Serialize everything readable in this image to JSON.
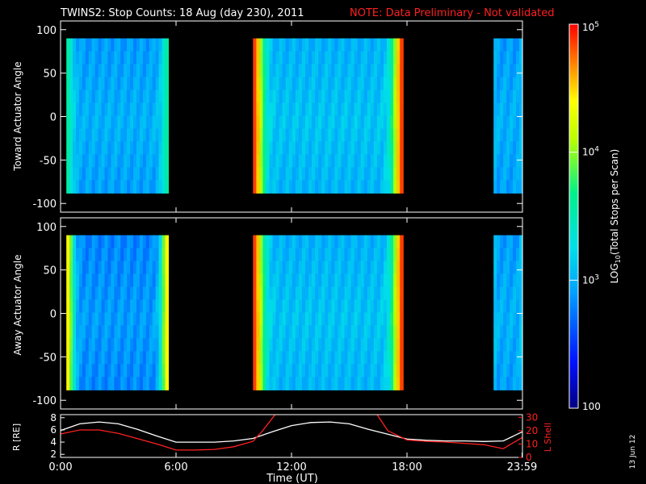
{
  "title": {
    "main": "TWINS2: Stop Counts: 18 Aug (day 230), 2011",
    "note": "NOTE: Data Preliminary - Not validated",
    "note_color": "#ff2020"
  },
  "datestamp": "13 Jun 12",
  "chart_data": [
    {
      "type": "heatmap",
      "panel": "toward",
      "ylabel": "Toward Actuator Angle",
      "ylim": [
        -110,
        110
      ],
      "yticks": [
        "100",
        "50",
        "0",
        "-50",
        "-100"
      ],
      "ytick_values": [
        100,
        50,
        0,
        -50,
        -100
      ],
      "angle_range": [
        -88,
        90
      ],
      "x_hours_range": [
        0,
        24
      ],
      "data_intervals_hours": [
        [
          0.3,
          5.6
        ],
        [
          10.0,
          17.8
        ],
        [
          22.5,
          24.0
        ]
      ],
      "log10_counts_by_interval": [
        {
          "start": 0.3,
          "end": 5.6,
          "typical": 3.0,
          "edge_max": 3.6
        },
        {
          "start": 10.0,
          "end": 17.8,
          "typical": 3.1,
          "edge_max": 4.9
        },
        {
          "start": 22.5,
          "end": 24.0,
          "typical": 3.0,
          "edge_max": 3.1
        }
      ]
    },
    {
      "type": "heatmap",
      "panel": "away",
      "ylabel": "Away Actuator Angle",
      "ylim": [
        -110,
        110
      ],
      "yticks": [
        "100",
        "50",
        "0",
        "-50",
        "-100"
      ],
      "ytick_values": [
        100,
        50,
        0,
        -50,
        -100
      ],
      "angle_range": [
        -88,
        90
      ],
      "x_hours_range": [
        0,
        24
      ],
      "data_intervals_hours": [
        [
          0.3,
          5.6
        ],
        [
          10.0,
          17.8
        ],
        [
          22.5,
          24.0
        ]
      ],
      "log10_counts_by_interval": [
        {
          "start": 0.3,
          "end": 5.6,
          "typical": 2.9,
          "edge_max": 4.5
        },
        {
          "start": 10.0,
          "end": 17.8,
          "typical": 3.1,
          "edge_max": 4.9
        },
        {
          "start": 22.5,
          "end": 24.0,
          "typical": 3.0,
          "edge_max": 3.2
        }
      ]
    },
    {
      "type": "line",
      "panel": "ephemeris",
      "ylabel": "R [RE]",
      "ylabel_right": "L Shell",
      "xlabel": "Time (UT)",
      "xticks": [
        "0:00",
        "6:00",
        "12:00",
        "18:00",
        "23:59"
      ],
      "xtick_hours": [
        0,
        6,
        12,
        18,
        23.98
      ],
      "yticks_left": [
        "2",
        "4",
        "6",
        "8"
      ],
      "ytick_values_left": [
        2,
        4,
        6,
        8
      ],
      "ylim_left": [
        1.5,
        8.5
      ],
      "yticks_right": [
        "0",
        "10",
        "20",
        "30"
      ],
      "ytick_values_right": [
        0,
        10,
        20,
        30
      ],
      "ylim_right": [
        0,
        32
      ],
      "series": [
        {
          "name": "R",
          "color": "#ffffff",
          "axis": "left",
          "hours": [
            0,
            1,
            2,
            3,
            4,
            5,
            6,
            7,
            8,
            9,
            10,
            11,
            12,
            13,
            14,
            15,
            16,
            17,
            18,
            19,
            20,
            21,
            22,
            23,
            24
          ],
          "values": [
            5.9,
            7.0,
            7.3,
            7.0,
            6.1,
            5.0,
            4.0,
            4.0,
            4.0,
            4.2,
            4.6,
            5.7,
            6.7,
            7.2,
            7.3,
            7.0,
            6.1,
            5.3,
            4.5,
            4.3,
            4.2,
            4.2,
            4.1,
            4.2,
            5.7
          ]
        },
        {
          "name": "L Shell",
          "color": "#ff2020",
          "axis": "right",
          "hours": [
            0,
            1,
            2,
            3,
            4,
            5,
            6,
            7,
            8,
            9,
            10,
            10.5,
            11.2,
            16.4,
            17,
            18,
            19,
            20,
            21,
            22,
            23,
            24
          ],
          "values": [
            17.5,
            20.5,
            20.5,
            18.0,
            14.0,
            10.0,
            5.5,
            5.5,
            6.0,
            8.0,
            12.0,
            20.0,
            33.0,
            33.0,
            20.0,
            13.0,
            12.0,
            11.5,
            10.5,
            9.5,
            6.5,
            15.0
          ]
        }
      ]
    }
  ],
  "colorbar": {
    "label": "LOG10(Total Stops per Scan)",
    "label_prefix": "LOG",
    "label_sub": "10",
    "label_suffix": "(Total Stops per Scan)",
    "scale": "log",
    "range": [
      100,
      100000
    ],
    "tick_labels": [
      {
        "value": 100000,
        "base": "10",
        "exp": "5"
      },
      {
        "value": 10000,
        "base": "10",
        "exp": "4"
      },
      {
        "value": 1000,
        "base": "10",
        "exp": "3"
      },
      {
        "value": 100,
        "base": "100",
        "exp": ""
      }
    ]
  }
}
